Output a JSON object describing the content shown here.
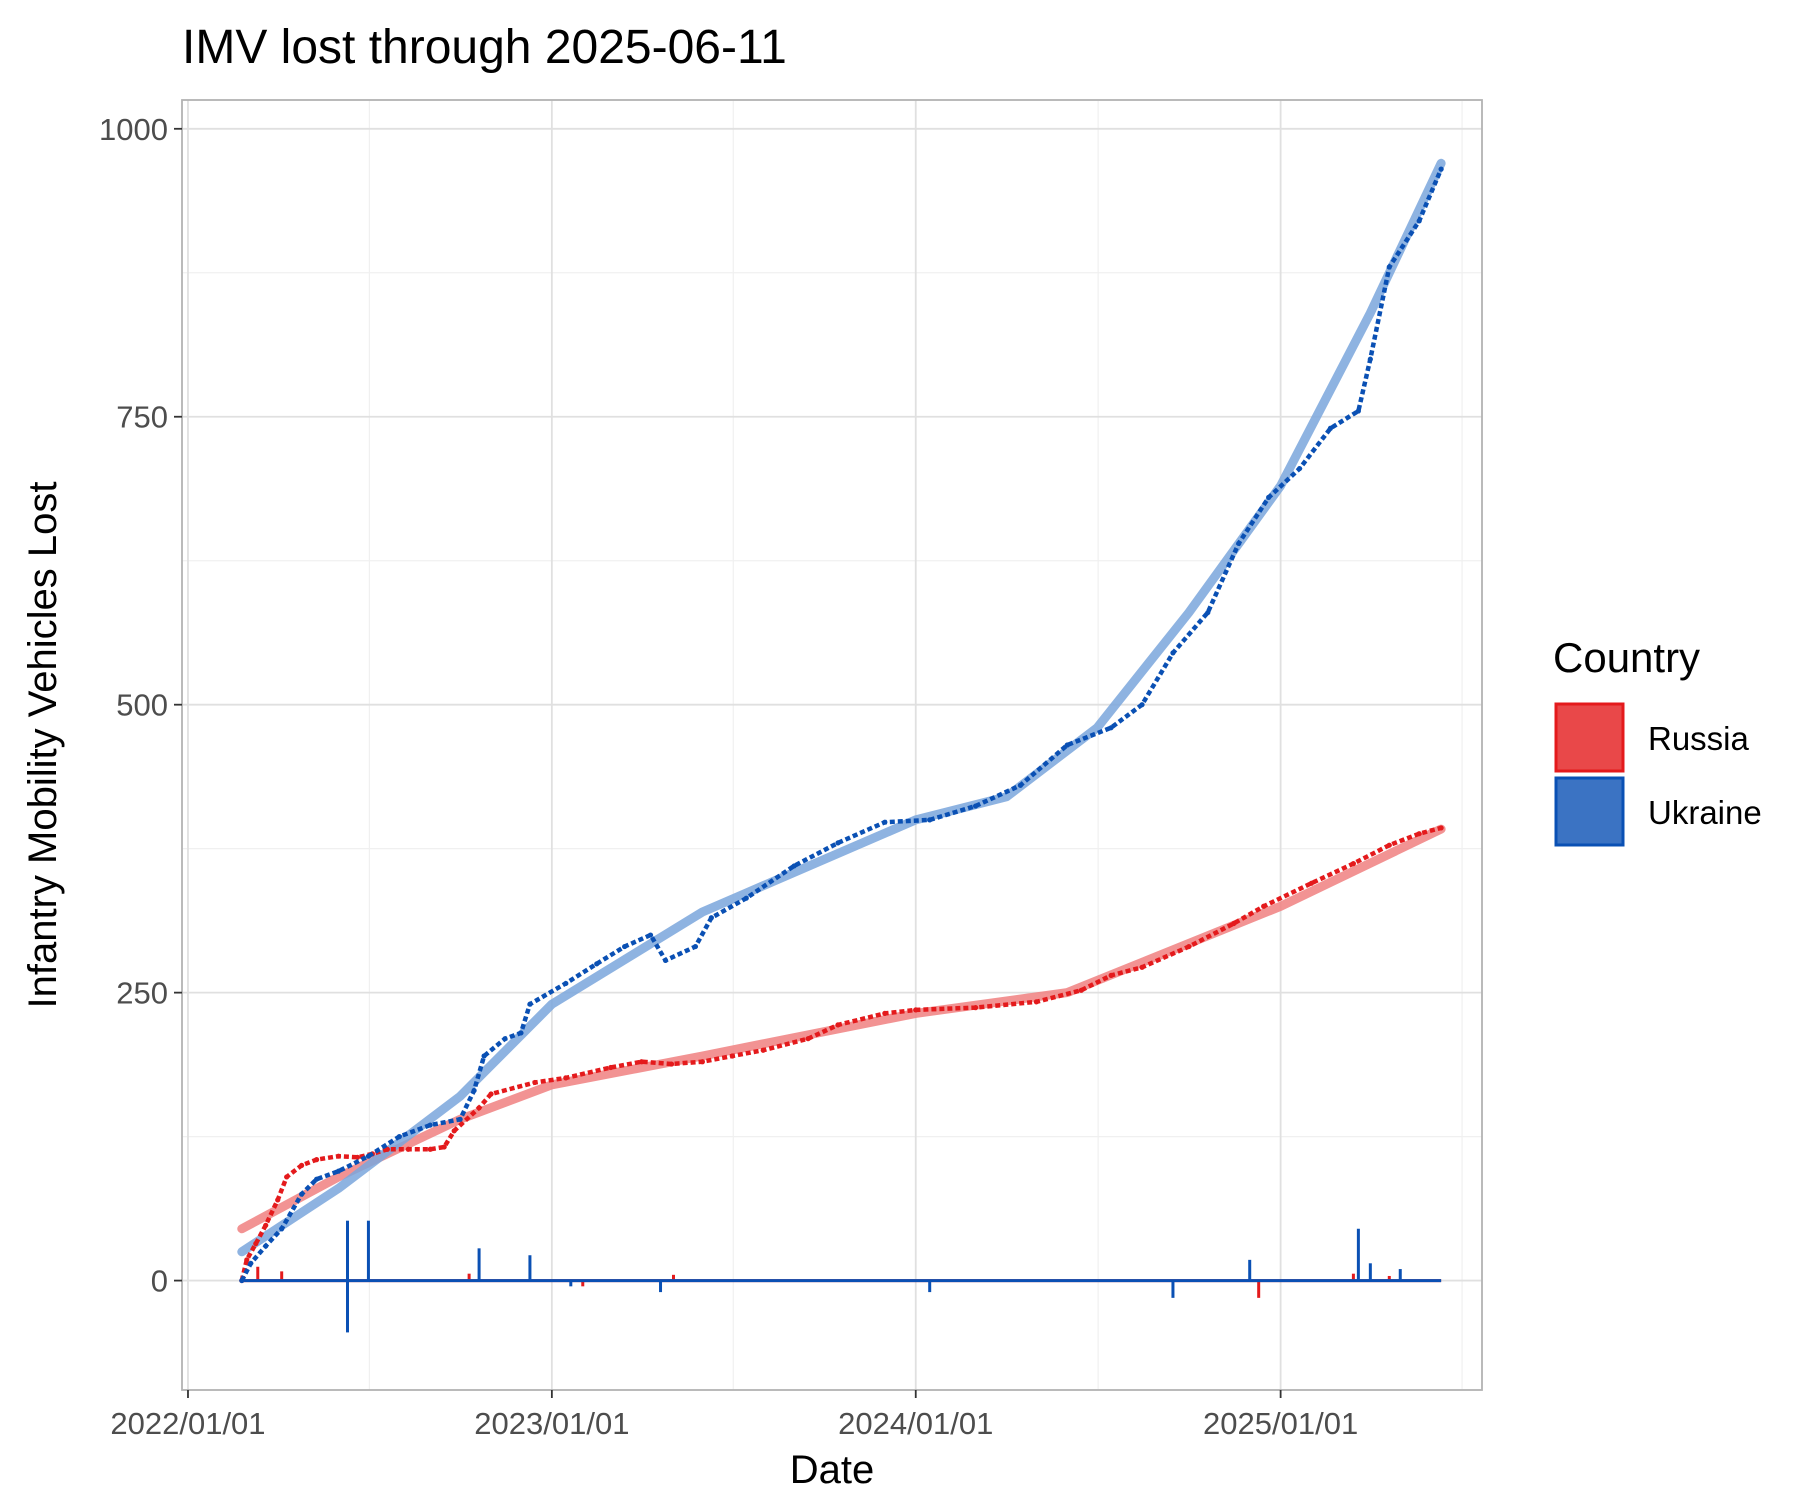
{
  "chart_data": {
    "type": "line",
    "title": "IMV lost through 2025-06-11",
    "xlabel": "Date",
    "ylabel": "Infantry Mobility Vehicles Lost",
    "x_start": "2022-02-24",
    "x_end": "2025-06-11",
    "x_ticks": [
      "2022/01/01",
      "2023/01/01",
      "2024/01/01",
      "2025/01/01"
    ],
    "x_tick_dates": [
      "2022-01-01",
      "2023-01-01",
      "2024-01-01",
      "2025-01-01"
    ],
    "x_minor_tick_dates": [
      "2022-07-02",
      "2023-07-02",
      "2024-07-02",
      "2025-07-02"
    ],
    "xlim": [
      "2021-12-26",
      "2025-07-22"
    ],
    "ylim": [
      -95,
      1025
    ],
    "y_ticks": [
      0,
      250,
      500,
      750,
      1000
    ],
    "y_minor_ticks": [
      125,
      375,
      625,
      875
    ],
    "grid": true,
    "legend": {
      "title": "Country",
      "position": "right"
    },
    "series": [
      {
        "name": "Russia",
        "color": "#e41a1c",
        "trend_color": "#f08080",
        "cumulative": [
          [
            "2022-02-24",
            0
          ],
          [
            "2022-03-01",
            18
          ],
          [
            "2022-03-10",
            32
          ],
          [
            "2022-03-20",
            48
          ],
          [
            "2022-04-01",
            70
          ],
          [
            "2022-04-10",
            90
          ],
          [
            "2022-04-25",
            100
          ],
          [
            "2022-05-10",
            105
          ],
          [
            "2022-06-01",
            108
          ],
          [
            "2022-06-20",
            107
          ],
          [
            "2022-07-05",
            110
          ],
          [
            "2022-07-20",
            114
          ],
          [
            "2022-08-10",
            114
          ],
          [
            "2022-09-01",
            114
          ],
          [
            "2022-09-15",
            116
          ],
          [
            "2022-09-25",
            130
          ],
          [
            "2022-10-20",
            150
          ],
          [
            "2022-11-01",
            162
          ],
          [
            "2022-12-15",
            172
          ],
          [
            "2023-01-15",
            176
          ],
          [
            "2023-03-01",
            185
          ],
          [
            "2023-04-01",
            190
          ],
          [
            "2023-05-01",
            188
          ],
          [
            "2023-06-01",
            190
          ],
          [
            "2023-07-01",
            195
          ],
          [
            "2023-08-01",
            200
          ],
          [
            "2023-09-15",
            210
          ],
          [
            "2023-10-15",
            222
          ],
          [
            "2023-12-01",
            232
          ],
          [
            "2024-01-01",
            235
          ],
          [
            "2024-03-01",
            237
          ],
          [
            "2024-05-01",
            242
          ],
          [
            "2024-06-15",
            252
          ],
          [
            "2024-07-15",
            265
          ],
          [
            "2024-08-15",
            272
          ],
          [
            "2024-10-01",
            290
          ],
          [
            "2024-11-15",
            310
          ],
          [
            "2024-12-15",
            325
          ],
          [
            "2025-02-01",
            345
          ],
          [
            "2025-03-15",
            362
          ],
          [
            "2025-04-20",
            378
          ],
          [
            "2025-05-20",
            388
          ],
          [
            "2025-06-11",
            393
          ]
        ],
        "trend": [
          [
            "2022-02-24",
            45
          ],
          [
            "2022-06-01",
            90
          ],
          [
            "2022-10-01",
            140
          ],
          [
            "2023-01-01",
            170
          ],
          [
            "2023-06-01",
            195
          ],
          [
            "2024-01-01",
            232
          ],
          [
            "2024-06-01",
            250
          ],
          [
            "2025-01-01",
            325
          ],
          [
            "2025-06-11",
            392
          ]
        ],
        "daily_spikes": [
          [
            "2022-03-12",
            12
          ],
          [
            "2022-04-05",
            8
          ],
          [
            "2022-10-10",
            6
          ],
          [
            "2023-02-01",
            -5
          ],
          [
            "2023-05-03",
            5
          ],
          [
            "2024-12-10",
            -15
          ],
          [
            "2025-03-15",
            6
          ],
          [
            "2025-04-20",
            4
          ]
        ]
      },
      {
        "name": "Ukraine",
        "color": "#0a50b4",
        "trend_color": "#7aa6dc",
        "cumulative": [
          [
            "2022-02-24",
            0
          ],
          [
            "2022-03-05",
            15
          ],
          [
            "2022-03-20",
            30
          ],
          [
            "2022-04-05",
            45
          ],
          [
            "2022-04-25",
            75
          ],
          [
            "2022-05-10",
            88
          ],
          [
            "2022-06-01",
            95
          ],
          [
            "2022-07-01",
            108
          ],
          [
            "2022-08-01",
            125
          ],
          [
            "2022-09-01",
            135
          ],
          [
            "2022-10-01",
            140
          ],
          [
            "2022-10-15",
            165
          ],
          [
            "2022-10-25",
            195
          ],
          [
            "2022-11-15",
            210
          ],
          [
            "2022-12-01",
            215
          ],
          [
            "2022-12-10",
            240
          ],
          [
            "2023-01-15",
            258
          ],
          [
            "2023-02-15",
            275
          ],
          [
            "2023-03-15",
            290
          ],
          [
            "2023-04-10",
            300
          ],
          [
            "2023-04-25",
            278
          ],
          [
            "2023-05-25",
            290
          ],
          [
            "2023-06-10",
            315
          ],
          [
            "2023-07-15",
            332
          ],
          [
            "2023-09-01",
            360
          ],
          [
            "2023-10-15",
            380
          ],
          [
            "2023-12-01",
            398
          ],
          [
            "2024-01-15",
            400
          ],
          [
            "2024-03-01",
            412
          ],
          [
            "2024-04-15",
            430
          ],
          [
            "2024-06-01",
            465
          ],
          [
            "2024-07-15",
            480
          ],
          [
            "2024-08-15",
            500
          ],
          [
            "2024-09-15",
            545
          ],
          [
            "2024-10-20",
            580
          ],
          [
            "2024-11-20",
            640
          ],
          [
            "2024-12-20",
            680
          ],
          [
            "2025-01-20",
            705
          ],
          [
            "2025-02-20",
            740
          ],
          [
            "2025-03-20",
            755
          ],
          [
            "2025-04-01",
            800
          ],
          [
            "2025-04-20",
            880
          ],
          [
            "2025-05-20",
            920
          ],
          [
            "2025-06-11",
            965
          ]
        ],
        "trend": [
          [
            "2022-02-24",
            25
          ],
          [
            "2022-06-01",
            80
          ],
          [
            "2022-10-01",
            160
          ],
          [
            "2023-01-01",
            240
          ],
          [
            "2023-06-01",
            320
          ],
          [
            "2024-01-01",
            400
          ],
          [
            "2024-04-01",
            420
          ],
          [
            "2024-07-01",
            480
          ],
          [
            "2024-10-01",
            580
          ],
          [
            "2025-01-01",
            690
          ],
          [
            "2025-04-01",
            840
          ],
          [
            "2025-06-11",
            970
          ]
        ],
        "daily_spikes": [
          [
            "2022-06-10",
            -45
          ],
          [
            "2022-06-10",
            52
          ],
          [
            "2022-07-01",
            52
          ],
          [
            "2022-10-20",
            28
          ],
          [
            "2022-12-10",
            22
          ],
          [
            "2023-01-20",
            -5
          ],
          [
            "2023-04-20",
            -10
          ],
          [
            "2024-01-15",
            -10
          ],
          [
            "2024-09-15",
            -15
          ],
          [
            "2024-12-01",
            18
          ],
          [
            "2025-03-20",
            45
          ],
          [
            "2025-04-01",
            15
          ],
          [
            "2025-05-01",
            10
          ]
        ]
      }
    ]
  }
}
